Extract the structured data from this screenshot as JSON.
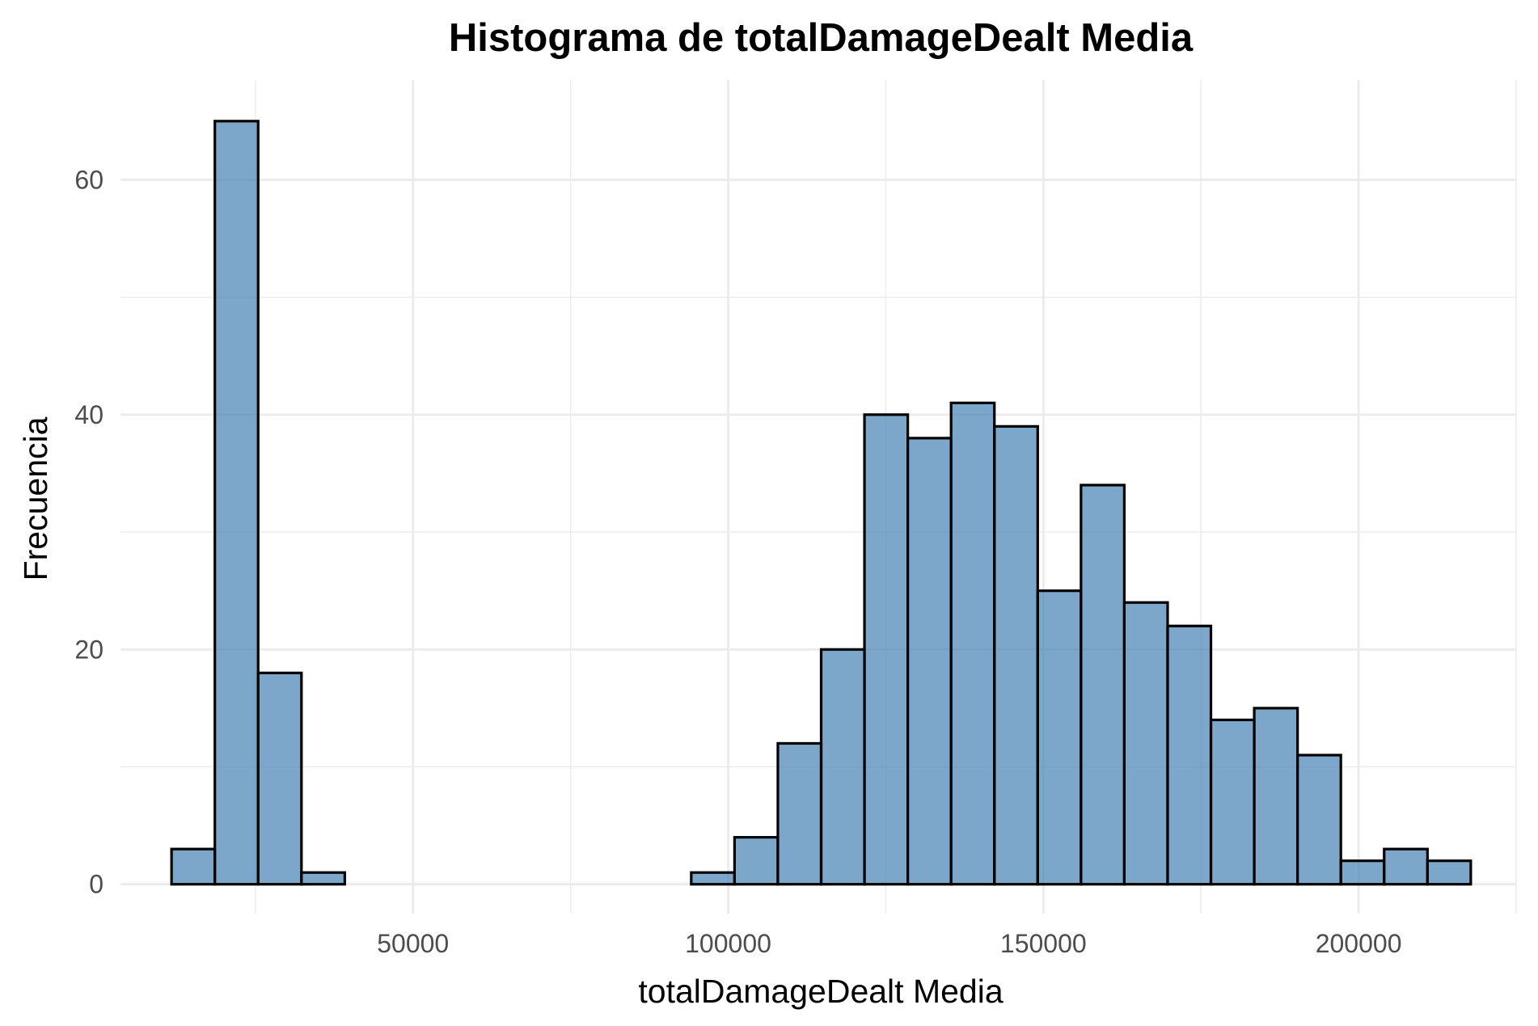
{
  "chart_data": {
    "type": "bar",
    "title": "Histograma de totalDamageDealt Media",
    "xlabel": "totalDamageDealt Media",
    "ylabel": "Frecuencia",
    "xlim": [
      3600,
      225000
    ],
    "ylim": [
      -2.5,
      68.5
    ],
    "xticks": [
      50000,
      100000,
      150000,
      200000
    ],
    "xtick_labels": [
      "50000",
      "100000",
      "150000",
      "200000"
    ],
    "yticks": [
      0,
      20,
      40,
      60
    ],
    "ytick_labels": [
      "0",
      "20",
      "40",
      "60"
    ],
    "bin_start": 11700,
    "bin_width": 6870,
    "values": [
      3,
      65,
      18,
      1,
      0,
      0,
      0,
      0,
      0,
      0,
      0,
      0,
      1,
      4,
      12,
      20,
      40,
      38,
      41,
      39,
      25,
      34,
      24,
      22,
      14,
      15,
      11,
      2,
      3,
      2
    ],
    "grid": true,
    "legend": "none",
    "bar_fill": "#4682b4",
    "bar_fill_opacity": 0.7,
    "bar_stroke": "#000000",
    "grid_color": "#ebebeb"
  }
}
